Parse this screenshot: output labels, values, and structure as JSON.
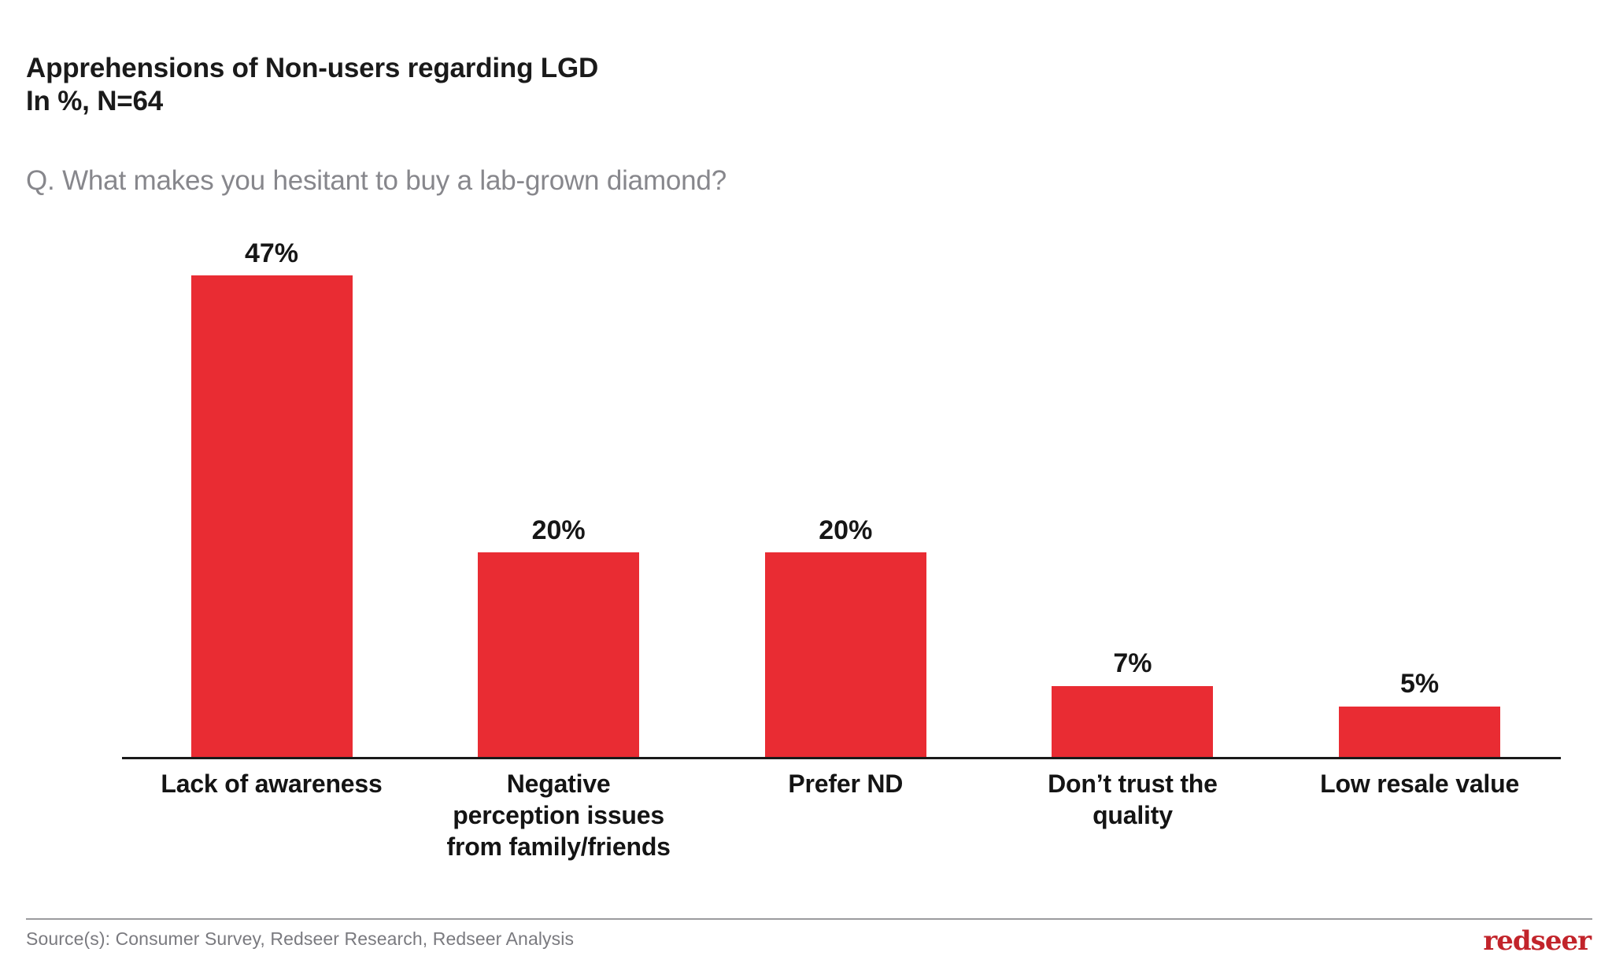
{
  "header": {
    "title_line1": "Apprehensions of Non-users regarding LGD",
    "title_line2": "In %, N=64",
    "question": "Q. What makes you hesitant to buy a lab-grown diamond?"
  },
  "chart_data": {
    "type": "bar",
    "title": "Apprehensions of Non-users regarding LGD",
    "subtitle": "In %, N=64",
    "unit": "%",
    "sample_size": 64,
    "categories": [
      "Lack of awareness",
      "Negative\nperception issues\nfrom family/friends",
      "Prefer ND",
      "Don’t trust the\nquality",
      "Low resale value"
    ],
    "values": [
      47,
      20,
      20,
      7,
      5
    ],
    "data_labels": [
      "47%",
      "20%",
      "20%",
      "7%",
      "5%"
    ],
    "xlabel": "",
    "ylabel": "",
    "ylim": [
      0,
      50
    ],
    "gridlines": false,
    "legend": false,
    "bar_color": "#E92C33"
  },
  "footer": {
    "source": "Source(s): Consumer Survey, Redseer Research, Redseer Analysis",
    "logo_text": "redseer"
  },
  "colors": {
    "bar_red": "#E92C33",
    "logo_red": "#C2242B",
    "title_text": "#1A1A1A",
    "question_text": "#87878C",
    "source_text": "#7A7A7F",
    "axis": "#1A1A1A",
    "divider": "#9B9B9E"
  }
}
